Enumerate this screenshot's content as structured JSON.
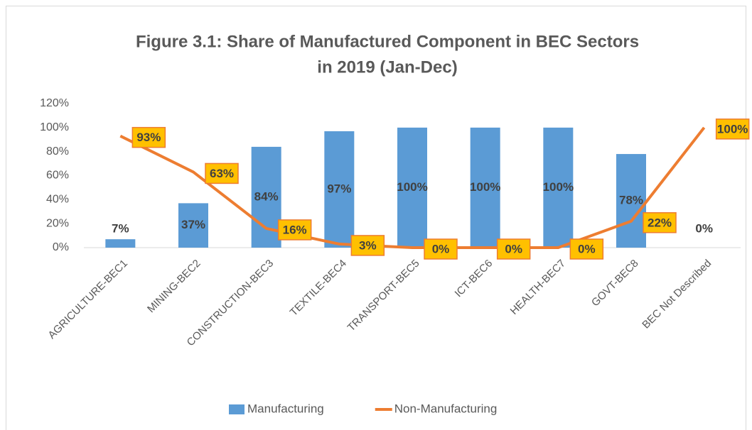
{
  "chart_data": {
    "type": "combo",
    "title": [
      "Figure 3.1: Share of Manufactured Component in BEC Sectors",
      "in 2019 (Jan-Dec)"
    ],
    "categories": [
      "AGRICULTURE-BEC1",
      "MINING-BEC2",
      "CONSTRUCTION-BEC3",
      "TEXTILE-BEC4",
      "TRANSPORT-BEC5",
      "ICT-BEC6",
      "HEALTH-BEC7",
      "GOVT-BEC8",
      "BEC Not Described"
    ],
    "series": [
      {
        "name": "Manufacturing",
        "type": "bar",
        "color": "#5b9bd5",
        "values": [
          7,
          37,
          84,
          97,
          100,
          100,
          100,
          78,
          0
        ],
        "value_labels": [
          "7%",
          "37%",
          "84%",
          "97%",
          "100%",
          "100%",
          "100%",
          "78%",
          "0%"
        ]
      },
      {
        "name": "Non-Manufacturing",
        "type": "line",
        "color": "#ed7d31",
        "values": [
          93,
          63,
          16,
          3,
          0,
          0,
          0,
          22,
          100
        ],
        "value_labels": [
          "93%",
          "63%",
          "16%",
          "3%",
          "0%",
          "0%",
          "0%",
          "22%",
          "100%"
        ]
      }
    ],
    "ylim": [
      0,
      120
    ],
    "yticks": [
      {
        "value": 0,
        "label": "0%"
      },
      {
        "value": 20,
        "label": "20%"
      },
      {
        "value": 40,
        "label": "40%"
      },
      {
        "value": 60,
        "label": "60%"
      },
      {
        "value": 80,
        "label": "80%"
      },
      {
        "value": 100,
        "label": "100%"
      },
      {
        "value": 120,
        "label": "120%"
      }
    ],
    "grid": false,
    "legend": "bottom"
  }
}
